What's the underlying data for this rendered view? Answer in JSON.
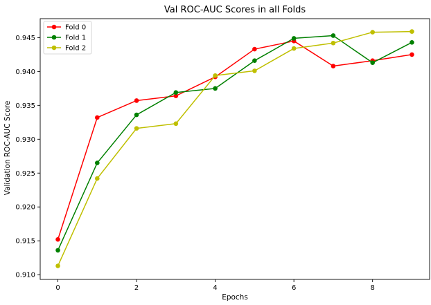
{
  "chart_data": {
    "type": "line",
    "title": "Val ROC-AUC Scores in all Folds",
    "xlabel": "Epochs",
    "ylabel": "Validation ROC-AUC Score",
    "xlim": [
      -0.45,
      9.45
    ],
    "ylim": [
      0.9093,
      0.9478
    ],
    "xticks": [
      0,
      2,
      4,
      6,
      8
    ],
    "yticks": [
      0.91,
      0.915,
      0.92,
      0.925,
      0.93,
      0.935,
      0.94,
      0.945
    ],
    "grid": false,
    "legend_position": "top-left",
    "x": [
      0,
      1,
      2,
      3,
      4,
      5,
      6,
      7,
      8,
      9
    ],
    "series": [
      {
        "name": "Fold 0",
        "color": "#ff0000",
        "values": [
          0.9152,
          0.9332,
          0.9357,
          0.9364,
          0.9392,
          0.9433,
          0.9445,
          0.9408,
          0.9416,
          0.9425
        ]
      },
      {
        "name": "Fold 1",
        "color": "#008000",
        "values": [
          0.9136,
          0.9265,
          0.9336,
          0.9369,
          0.9375,
          0.9416,
          0.9449,
          0.9453,
          0.9413,
          0.9443
        ]
      },
      {
        "name": "Fold 2",
        "color": "#bfbf00",
        "values": [
          0.9113,
          0.9242,
          0.9316,
          0.9323,
          0.9394,
          0.9401,
          0.9434,
          0.9442,
          0.9458,
          0.9459
        ]
      }
    ]
  }
}
